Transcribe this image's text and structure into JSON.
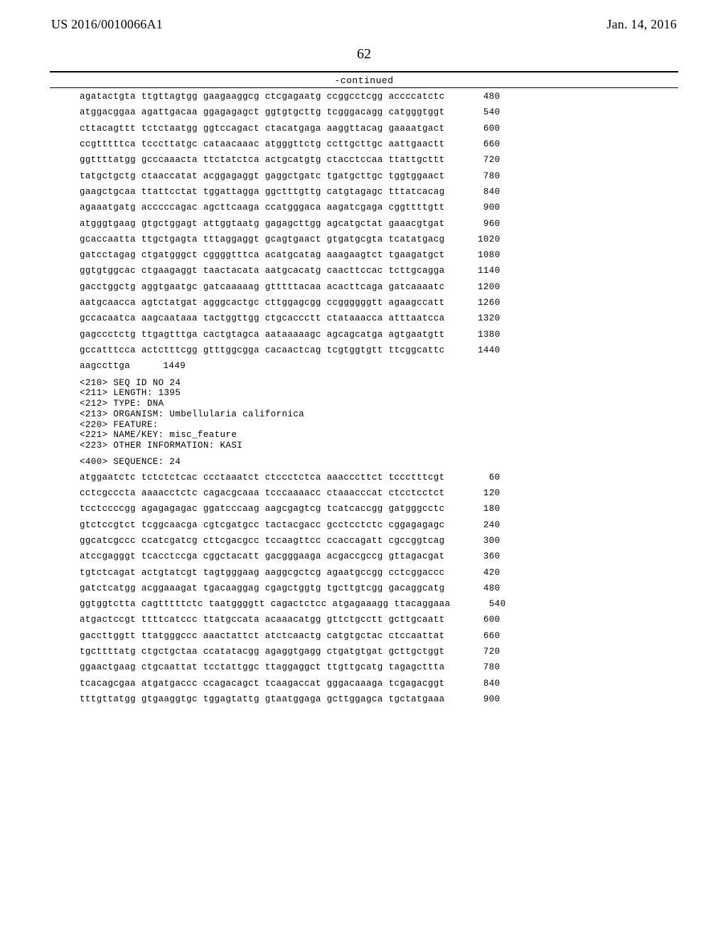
{
  "header": {
    "pub_no": "US 2016/0010066A1",
    "date": "Jan. 14, 2016"
  },
  "page_number": "62",
  "continued_label": "-continued",
  "block1": {
    "lines": [
      {
        "seq": "agatactgta ttgttagtgg gaagaaggcg ctcgagaatg ccggcctcgg accccatctc",
        "num": "480"
      },
      {
        "seq": "atggacggaa agattgacaa ggagagagct ggtgtgcttg tcgggacagg catgggtggt",
        "num": "540"
      },
      {
        "seq": "cttacagttt tctctaatgg ggtccagact ctacatgaga aaggttacag gaaaatgact",
        "num": "600"
      },
      {
        "seq": "ccgtttttca tcccttatgc cataacaaac atgggttctg ccttgcttgc aattgaactt",
        "num": "660"
      },
      {
        "seq": "ggttttatgg gcccaaacta ttctatctca actgcatgtg ctacctccaa ttattgcttt",
        "num": "720"
      },
      {
        "seq": "tatgctgctg ctaaccatat acggagaggt gaggctgatc tgatgcttgc tggtggaact",
        "num": "780"
      },
      {
        "seq": "gaagctgcaa ttattcctat tggattagga ggctttgttg catgtagagc tttatcacag",
        "num": "840"
      },
      {
        "seq": "agaaatgatg acccccagac agcttcaaga ccatgggaca aagatcgaga cggttttgtt",
        "num": "900"
      },
      {
        "seq": "atgggtgaag gtgctggagt attggtaatg gagagcttgg agcatgctat gaaacgtgat",
        "num": "960"
      },
      {
        "seq": "gcaccaatta ttgctgagta tttaggaggt gcagtgaact gtgatgcgta tcatatgacg",
        "num": "1020"
      },
      {
        "seq": "gatcctagag ctgatgggct cggggtttca acatgcatag aaagaagtct tgaagatgct",
        "num": "1080"
      },
      {
        "seq": "ggtgtggcac ctgaagaggt taactacata aatgcacatg caacttccac tcttgcagga",
        "num": "1140"
      },
      {
        "seq": "gacctggctg aggtgaatgc gatcaaaaag gtttttacaa acacttcaga gatcaaaatc",
        "num": "1200"
      },
      {
        "seq": "aatgcaacca agtctatgat agggcactgc cttggagcgg ccggggggtt agaagccatt",
        "num": "1260"
      },
      {
        "seq": "gccacaatca aagcaataaa tactggttgg ctgcaccctt ctataaacca atttaatcca",
        "num": "1320"
      },
      {
        "seq": "gagccctctg ttgagtttga cactgtagca aataaaaagc agcagcatga agtgaatgtt",
        "num": "1380"
      },
      {
        "seq": "gccatttcca actctttcgg gtttggcgga cacaactcag tcgtggtgtt ttcggcattc",
        "num": "1440"
      },
      {
        "seq": "aagccttga",
        "num": "1449"
      }
    ]
  },
  "meta": [
    "<210> SEQ ID NO 24",
    "<211> LENGTH: 1395",
    "<212> TYPE: DNA",
    "<213> ORGANISM: Umbellularia californica",
    "<220> FEATURE:",
    "<221> NAME/KEY: misc_feature",
    "<223> OTHER INFORMATION: KASI"
  ],
  "sequence_header": "<400> SEQUENCE: 24",
  "block2": {
    "lines": [
      {
        "seq": "atggaatctc tctctctcac ccctaaatct ctccctctca aaacccttct tccctttcgt",
        "num": "60"
      },
      {
        "seq": "cctcgcccta aaaacctctc cagacgcaaa tcccaaaacc ctaaacccat ctcctcctct",
        "num": "120"
      },
      {
        "seq": "tcctccccgg agagagagac ggatcccaag aagcgagtcg tcatcaccgg gatgggcctc",
        "num": "180"
      },
      {
        "seq": "gtctccgtct tcggcaacga cgtcgatgcc tactacgacc gcctcctctc cggagagagc",
        "num": "240"
      },
      {
        "seq": "ggcatcgccc ccatcgatcg cttcgacgcc tccaagttcc ccaccagatt cgccggtcag",
        "num": "300"
      },
      {
        "seq": "atccgagggt tcacctccga cggctacatt gacgggaaga acgaccgccg gttagacgat",
        "num": "360"
      },
      {
        "seq": "tgtctcagat actgtatcgt tagtgggaag aaggcgctcg agaatgccgg cctcggaccc",
        "num": "420"
      },
      {
        "seq": "gatctcatgg acggaaagat tgacaaggag cgagctggtg tgcttgtcgg gacaggcatg",
        "num": "480"
      },
      {
        "seq": "ggtggtctta cagtttttctc taatggggtt cagactctcc atgagaaagg ttacaggaaa",
        "num": "540"
      },
      {
        "seq": "atgactccgt ttttcatccc ttatgccata acaaacatgg gttctgcctt gcttgcaatt",
        "num": "600"
      },
      {
        "seq": "gaccttggtt ttatgggccc aaactattct atctcaactg catgtgctac ctccaattat",
        "num": "660"
      },
      {
        "seq": "tgcttttatg ctgctgctaa ccatatacgg agaggtgagg ctgatgtgat gcttgctggt",
        "num": "720"
      },
      {
        "seq": "ggaactgaag ctgcaattat tcctattggc ttaggaggct ttgttgcatg tagagcttta",
        "num": "780"
      },
      {
        "seq": "tcacagcgaa atgatgaccc ccagacagct tcaagaccat gggacaaaga tcgagacggt",
        "num": "840"
      },
      {
        "seq": "tttgttatgg gtgaaggtgc tggagtattg gtaatggaga gcttggagca tgctatgaaa",
        "num": "900"
      }
    ]
  }
}
